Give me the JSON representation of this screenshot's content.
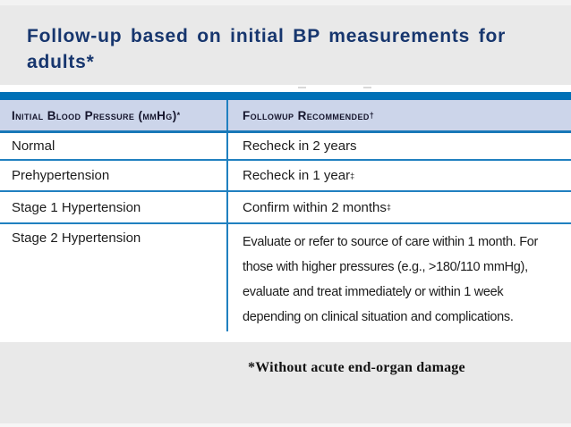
{
  "title": {
    "line1": "Follow-up based on initial BP measurements for",
    "line2": "adults*"
  },
  "table": {
    "header": {
      "col1_label": "Initial Blood Pressure (mmHg)",
      "col1_sup": "*",
      "col2_label": "Followup Recommended",
      "col2_sup": "†"
    },
    "rows": [
      {
        "category": "Normal",
        "recommendation": "Recheck in 2 years",
        "sup": ""
      },
      {
        "category": "Prehypertension",
        "recommendation": "Recheck in 1 year",
        "sup": "‡"
      },
      {
        "category": "Stage 1 Hypertension",
        "recommendation": "Confirm within 2 months",
        "sup": "‡"
      },
      {
        "category": "Stage 2 Hypertension",
        "recommendation": "Evaluate or refer to source of care within 1 month.  For those with higher pressures (e.g., >180/110 mmHg), evaluate and treat immediately or within 1 week depending on clinical situation and complications.",
        "sup": ""
      }
    ]
  },
  "footnote": {
    "text": "*Without acute end-organ damage"
  },
  "colors": {
    "background": "#e9e9e9",
    "title_text": "#17366e",
    "table_bar": "#0070b6",
    "header_background": "#ccd5ea",
    "grid_line": "#2080c0",
    "body_text": "#1c1c1c"
  }
}
